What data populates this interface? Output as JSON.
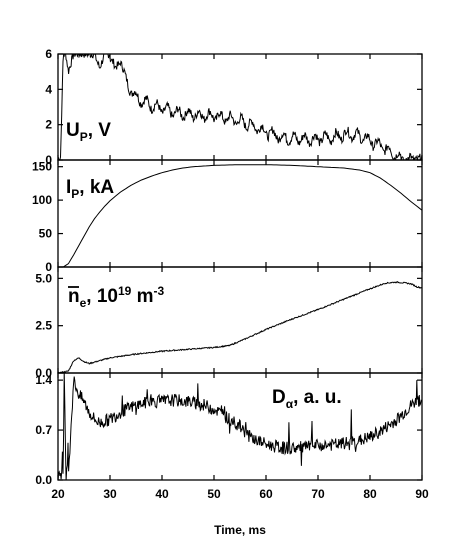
{
  "chart_data": {
    "type": "line",
    "xlabel": "Time, ms",
    "xlim": [
      20,
      90
    ],
    "xticks": [
      "20",
      "30",
      "40",
      "50",
      "60",
      "70",
      "80",
      "90"
    ],
    "panels": [
      {
        "id": "up",
        "label_main": "U",
        "label_sub": "P",
        "label_rest": ", V",
        "ylim": [
          0,
          6
        ],
        "yticks": [
          "0",
          "2",
          "4",
          "6"
        ],
        "ytick_values": [
          0,
          2,
          4,
          6
        ],
        "x": [
          20.0,
          20.5,
          21.0,
          21.5,
          22.0,
          23.0,
          24.0,
          25.0,
          26.0,
          27.0,
          28.0,
          29.0,
          30.0,
          31.0,
          32.0,
          33.0,
          34.0,
          35.0,
          36.0,
          38.0,
          40.0,
          42.0,
          45.0,
          48.0,
          50.0,
          52.0,
          55.0,
          58.0,
          60.0,
          63.0,
          66.0,
          70.0,
          73.0,
          76.0,
          78.0,
          80.0,
          82.0,
          84.0,
          85.0,
          86.0,
          87.0,
          88.0,
          89.0,
          90.0
        ],
        "y": [
          0.0,
          0.2,
          6.0,
          6.0,
          5.0,
          6.0,
          6.0,
          6.0,
          6.0,
          6.0,
          5.2,
          6.0,
          6.0,
          5.0,
          5.8,
          4.5,
          4.0,
          3.6,
          3.4,
          3.1,
          2.9,
          2.7,
          2.6,
          2.55,
          2.5,
          2.4,
          2.2,
          1.9,
          1.6,
          1.3,
          1.2,
          1.2,
          1.3,
          1.5,
          1.35,
          1.1,
          0.8,
          0.5,
          0.3,
          0.1,
          0.05,
          0.05,
          0.0,
          0.2
        ],
        "noise": 0.4
      },
      {
        "id": "ip",
        "label_main": "I",
        "label_sub": "P",
        "label_rest": ", kA",
        "ylim": [
          0,
          160
        ],
        "yticks": [
          "0",
          "50",
          "100",
          "150"
        ],
        "ytick_values": [
          0,
          50,
          100,
          150
        ],
        "x": [
          20.0,
          21.0,
          22.0,
          23.0,
          24.0,
          25.0,
          26.0,
          27.0,
          28.0,
          29.0,
          30.0,
          32.0,
          34.0,
          36.0,
          38.0,
          40.0,
          42.0,
          44.0,
          46.0,
          48.0,
          50.0,
          55.0,
          60.0,
          65.0,
          70.0,
          75.0,
          78.0,
          80.0,
          82.0,
          84.0,
          86.0,
          88.0,
          90.0
        ],
        "y": [
          0,
          0,
          5,
          18,
          32,
          46,
          60,
          72,
          82,
          91,
          99,
          112,
          122,
          130,
          136,
          141,
          145,
          148,
          150,
          151,
          152,
          153,
          153,
          152,
          150,
          148,
          145,
          141,
          133,
          122,
          110,
          97,
          85
        ],
        "noise": 0
      },
      {
        "id": "ne",
        "label_main": "n",
        "label_sub": "e",
        "label_rest": ", 10",
        "label_sup": "19",
        "label_unit": " m",
        "label_sup2": "-3",
        "ylim": [
          0,
          5.6
        ],
        "yticks": [
          "0.0",
          "2.5",
          "5.0"
        ],
        "ytick_values": [
          0,
          2.5,
          5.0
        ],
        "x": [
          20.0,
          21.0,
          22.0,
          23.0,
          24.0,
          25.0,
          26.0,
          28.0,
          30.0,
          35.0,
          40.0,
          45.0,
          50.0,
          53.0,
          56.0,
          60.0,
          65.0,
          70.0,
          75.0,
          80.0,
          83.0,
          85.0,
          87.0,
          88.0,
          89.0,
          90.0
        ],
        "y": [
          0.0,
          0.05,
          0.1,
          0.65,
          0.8,
          0.6,
          0.5,
          0.65,
          0.8,
          1.0,
          1.15,
          1.25,
          1.35,
          1.45,
          1.8,
          2.3,
          2.85,
          3.35,
          3.9,
          4.45,
          4.75,
          4.8,
          4.75,
          4.7,
          4.55,
          4.5
        ],
        "noise": 0.03
      },
      {
        "id": "da",
        "label_main": "D",
        "label_sub": "α",
        "label_rest": ", a. u.",
        "ylim": [
          0,
          1.5
        ],
        "yticks": [
          "0.0",
          "0.7",
          "1.4"
        ],
        "ytick_values": [
          0,
          0.7,
          1.4
        ],
        "x": [
          20.0,
          20.5,
          21.0,
          21.2,
          21.5,
          22.0,
          23.0,
          24.0,
          25.0,
          26.0,
          27.0,
          28.0,
          30.0,
          32.0,
          35.0,
          38.0,
          40.0,
          42.0,
          45.0,
          48.0,
          50.0,
          52.0,
          55.0,
          57.0,
          60.0,
          63.0,
          66.0,
          70.0,
          74.0,
          78.0,
          80.0,
          82.0,
          84.0,
          86.0,
          88.0,
          90.0
        ],
        "y": [
          0.05,
          0.1,
          0.05,
          1.45,
          0.2,
          0.1,
          1.4,
          1.2,
          1.1,
          0.95,
          0.85,
          0.8,
          0.85,
          0.95,
          1.05,
          1.1,
          1.1,
          1.12,
          1.1,
          1.05,
          1.0,
          0.9,
          0.75,
          0.6,
          0.5,
          0.45,
          0.45,
          0.48,
          0.5,
          0.55,
          0.6,
          0.68,
          0.78,
          0.9,
          1.05,
          1.15
        ],
        "noise": 0.09
      }
    ]
  }
}
